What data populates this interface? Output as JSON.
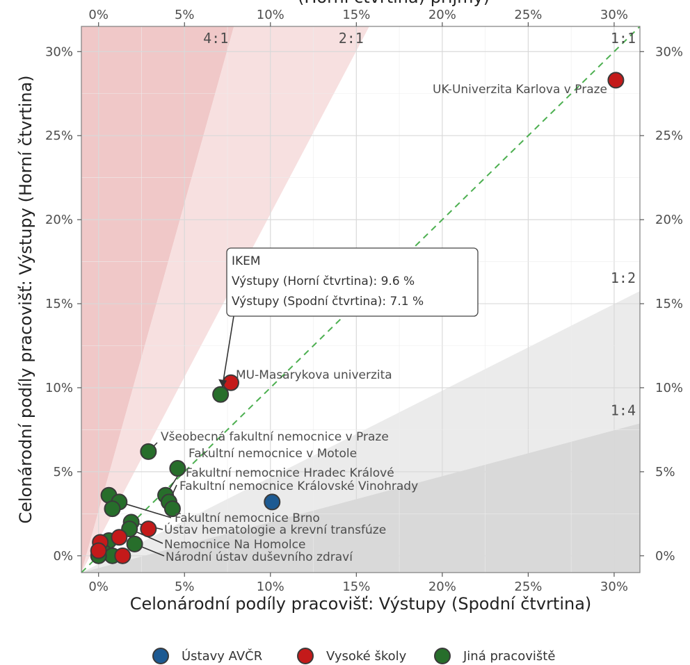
{
  "chart_data": {
    "type": "scatter",
    "title": "",
    "top_partial_label": "(Horní čtvrtina) příjmy)",
    "xlabel": "Celonárodní podíly pracovišť: Výstupy (Spodní čtvrtina)",
    "ylabel": "Celonárodní podíly pracovišť: Výstupy (Horní čtvrtina)",
    "xlim": [
      -1,
      31.5
    ],
    "ylim": [
      -1,
      31.5
    ],
    "x_ticks": [
      0,
      5,
      10,
      15,
      20,
      25,
      30
    ],
    "y_ticks": [
      0,
      5,
      10,
      15,
      20,
      25,
      30
    ],
    "tick_labels": [
      "0%",
      "5%",
      "10%",
      "15%",
      "20%",
      "25%",
      "30%"
    ],
    "grid": true,
    "reference_lines": [
      {
        "label": "4:1",
        "slope": 4
      },
      {
        "label": "2:1",
        "slope": 2
      },
      {
        "label": "1:1",
        "slope": 1
      },
      {
        "label": "1:2",
        "slope": 0.5
      },
      {
        "label": "1:4",
        "slope": 0.25
      }
    ],
    "colors": {
      "Ústavy AVČR": "#1d5a92",
      "Vysoké školy": "#c41a1a",
      "Jiná pracoviště": "#276e2b",
      "band_4to1": "#f0c8c8",
      "band_2to1": "#f7e0e0",
      "band_1to2": "#ebebeb",
      "band_1to4": "#d9d9d9",
      "diagonal": "#4caf50"
    },
    "legend": {
      "position": "bottom",
      "entries": [
        "Ústavy AVČR",
        "Vysoké školy",
        "Jiná pracoviště"
      ]
    },
    "series": [
      {
        "name": "Ústavy AVČR",
        "points": [
          [
            10.1,
            3.2
          ]
        ]
      },
      {
        "name": "Vysoké školy",
        "points": [
          [
            30.1,
            28.3
          ],
          [
            7.7,
            10.3
          ],
          [
            2.9,
            1.6
          ],
          [
            1.2,
            1.1
          ],
          [
            1.4,
            0.0
          ],
          [
            0.1,
            0.8
          ],
          [
            0.0,
            0.3
          ]
        ]
      },
      {
        "name": "Jiná pracoviště",
        "points": [
          [
            7.1,
            9.6
          ],
          [
            2.9,
            6.2
          ],
          [
            4.6,
            5.2
          ],
          [
            3.9,
            3.6
          ],
          [
            4.1,
            3.2
          ],
          [
            4.3,
            2.8
          ],
          [
            0.6,
            3.6
          ],
          [
            1.2,
            3.2
          ],
          [
            0.8,
            2.8
          ],
          [
            1.9,
            2.0
          ],
          [
            1.8,
            1.6
          ],
          [
            2.1,
            0.7
          ],
          [
            0.6,
            0.9
          ],
          [
            0.3,
            0.2
          ],
          [
            0.8,
            0.0
          ],
          [
            0.0,
            0.0
          ]
        ]
      }
    ],
    "annotations": [
      {
        "text": "UK-Univerzita Karlova v Praze",
        "x": 30.1,
        "y": 28.3
      },
      {
        "text": "MU-Masarykova univerzita",
        "x": 7.7,
        "y": 10.3
      },
      {
        "text": "Všeobecná fakultní nemocnice v Praze",
        "x": 2.9,
        "y": 6.2
      },
      {
        "text": "Fakultní nemocnice v Motole",
        "x": 4.6,
        "y": 5.2
      },
      {
        "text": "Fakultní nemocnice Hradec Králové",
        "x": 3.9,
        "y": 3.6
      },
      {
        "text": "Fakultní nemocnice Královské Vinohrady",
        "x": 4.1,
        "y": 3.2
      },
      {
        "text": "Fakultní nemocnice Brno",
        "x": 1.2,
        "y": 3.2
      },
      {
        "text": "Ústav hematologie a krevní transfúze",
        "x": 1.9,
        "y": 2.0
      },
      {
        "text": "Nemocnice Na Homolce",
        "x": 1.8,
        "y": 1.6
      },
      {
        "text": "Národní ústav duševního zdraví",
        "x": 2.1,
        "y": 0.7
      }
    ],
    "tooltip": {
      "lines": [
        "IKEM",
        "Výstupy (Horní čtvrtina): 9.6 %",
        "Výstupy (Spodní čtvrtina): 7.1 %"
      ],
      "x": 7.1,
      "y": 9.6
    }
  }
}
